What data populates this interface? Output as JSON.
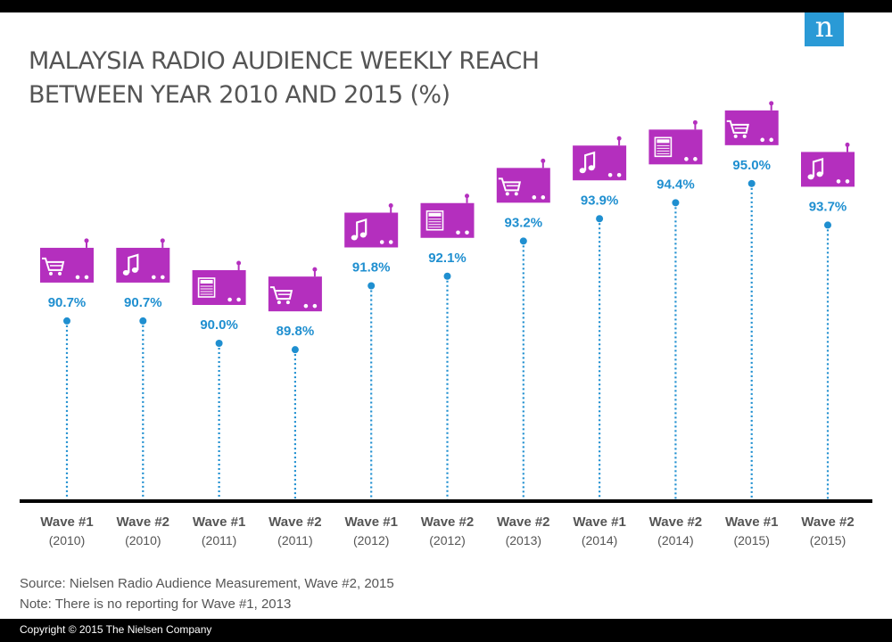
{
  "header": {
    "logo_text": "n",
    "title_line1": "MALAYSIA RADIO AUDIENCE WEEKLY REACH",
    "title_line2": "BETWEEN YEAR 2010 AND 2015 (%)"
  },
  "colors": {
    "accent": "#b42fbe",
    "dots": "#1f8fd0",
    "value_label": "#1f8fd0",
    "logo": "#2a9ad6"
  },
  "chart_data": {
    "type": "scatter",
    "title": "MALAYSIA RADIO AUDIENCE WEEKLY REACH BETWEEN YEAR 2010 AND 2015 (%)",
    "xlabel": "",
    "ylabel": "",
    "ylim": [
      84,
      96
    ],
    "grid": false,
    "categories": [
      {
        "wave": "Wave #1",
        "year": "(2010)"
      },
      {
        "wave": "Wave #2",
        "year": "(2010)"
      },
      {
        "wave": "Wave #1",
        "year": "(2011)"
      },
      {
        "wave": "Wave #2",
        "year": "(2011)"
      },
      {
        "wave": "Wave #1",
        "year": "(2012)"
      },
      {
        "wave": "Wave #2",
        "year": "(2012)"
      },
      {
        "wave": "Wave #2",
        "year": "(2013)"
      },
      {
        "wave": "Wave #1",
        "year": "(2014)"
      },
      {
        "wave": "Wave #2",
        "year": "(2014)"
      },
      {
        "wave": "Wave #1",
        "year": "(2015)"
      },
      {
        "wave": "Wave #2",
        "year": "(2015)"
      }
    ],
    "values": [
      90.7,
      90.7,
      90.0,
      89.8,
      91.8,
      92.1,
      93.2,
      93.9,
      94.4,
      95.0,
      93.7
    ],
    "labels": [
      "90.7%",
      "90.7%",
      "90.0%",
      "89.8%",
      "91.8%",
      "92.1%",
      "93.2%",
      "93.9%",
      "94.4%",
      "95.0%",
      "93.7%"
    ],
    "icons": [
      "cart-icon",
      "music-note-icon",
      "news-icon",
      "cart-icon",
      "music-note-icon",
      "news-icon",
      "cart-icon",
      "music-note-icon",
      "news-icon",
      "cart-icon",
      "music-note-icon"
    ]
  },
  "footer": {
    "source": "Source:  Nielsen Radio Audience Measurement, Wave #2, 2015",
    "note": "Note: There is no reporting for Wave #1, 2013",
    "copyright": "Copyright © 2015 The Nielsen Company"
  }
}
